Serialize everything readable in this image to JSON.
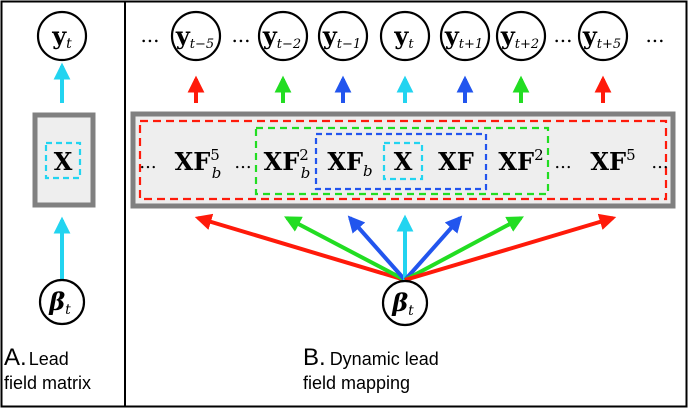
{
  "colors": {
    "frame": "#000000",
    "box_border": "#808080",
    "box_fill": "#eeeeee",
    "red": "#ff1a0a",
    "green": "#22dd22",
    "blue": "#2255ee",
    "cyan": "#22d4f0"
  },
  "panel_a": {
    "output_node": {
      "main": "y",
      "sub": "t"
    },
    "matrix_label": "X",
    "source_node": {
      "main": "β",
      "sub": "t"
    },
    "caption_letter": "A.",
    "caption_line1": "Lead",
    "caption_line2": "field matrix"
  },
  "panel_b": {
    "output_nodes": [
      {
        "main": "y",
        "sub": "t−5",
        "arrow": "red"
      },
      {
        "main": "y",
        "sub": "t−2",
        "arrow": "green"
      },
      {
        "main": "y",
        "sub": "t−1",
        "arrow": "blue"
      },
      {
        "main": "y",
        "sub": "t",
        "arrow": "cyan"
      },
      {
        "main": "y",
        "sub": "t+1",
        "arrow": "blue"
      },
      {
        "main": "y",
        "sub": "t+2",
        "arrow": "green"
      },
      {
        "main": "y",
        "sub": "t+5",
        "arrow": "red"
      }
    ],
    "ellipsis": "...",
    "matrix_terms": [
      {
        "main": "XF",
        "sup": "5",
        "sub": "b"
      },
      {
        "main": "XF",
        "sup": "2",
        "sub": "b"
      },
      {
        "main": "XF",
        "sup": "",
        "sub": "b"
      },
      {
        "main": "X",
        "sup": "",
        "sub": ""
      },
      {
        "main": "XF",
        "sup": "",
        "sub": ""
      },
      {
        "main": "XF",
        "sup": "2",
        "sub": ""
      },
      {
        "main": "XF",
        "sup": "5",
        "sub": ""
      }
    ],
    "source_node": {
      "main": "β",
      "sub": "t"
    },
    "caption_letter": "B.",
    "caption_line1": "Dynamic lead",
    "caption_line2": "field mapping"
  }
}
